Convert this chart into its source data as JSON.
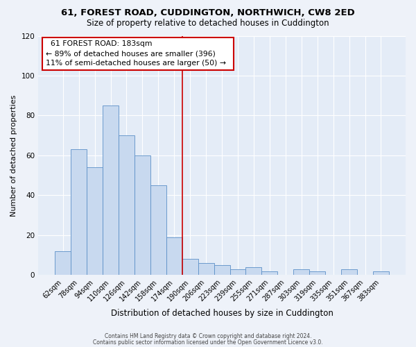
{
  "title": "61, FOREST ROAD, CUDDINGTON, NORTHWICH, CW8 2ED",
  "subtitle": "Size of property relative to detached houses in Cuddington",
  "xlabel": "Distribution of detached houses by size in Cuddington",
  "ylabel": "Number of detached properties",
  "bar_labels": [
    "62sqm",
    "78sqm",
    "94sqm",
    "110sqm",
    "126sqm",
    "142sqm",
    "158sqm",
    "174sqm",
    "190sqm",
    "206sqm",
    "223sqm",
    "239sqm",
    "255sqm",
    "271sqm",
    "287sqm",
    "303sqm",
    "319sqm",
    "335sqm",
    "351sqm",
    "367sqm",
    "383sqm"
  ],
  "all_values": [
    12,
    63,
    54,
    85,
    70,
    60,
    45,
    19,
    8,
    6,
    5,
    3,
    4,
    2,
    0,
    3,
    2,
    0,
    3,
    0,
    2
  ],
  "bar_color": "#c8d9ef",
  "bar_edge_color": "#5b8fc7",
  "vline_x_index": 7.5,
  "vline_color": "#cc0000",
  "annotation_title": "61 FOREST ROAD: 183sqm",
  "annotation_line1": "← 89% of detached houses are smaller (396)",
  "annotation_line2": "11% of semi-detached houses are larger (50) →",
  "annotation_box_color": "#ffffff",
  "annotation_box_edge": "#cc0000",
  "ylim": [
    0,
    120
  ],
  "yticks": [
    0,
    20,
    40,
    60,
    80,
    100,
    120
  ],
  "footer1": "Contains HM Land Registry data © Crown copyright and database right 2024.",
  "footer2": "Contains public sector information licensed under the Open Government Licence v3.0.",
  "bg_color": "#eef2f9",
  "plot_bg_color": "#e4ecf7",
  "grid_color": "#ffffff",
  "title_fontsize": 9.5,
  "subtitle_fontsize": 8.5,
  "xlabel_fontsize": 8.5,
  "ylabel_fontsize": 8.0,
  "tick_fontsize": 7.0,
  "annotation_fontsize": 7.8,
  "footer_fontsize": 5.5
}
